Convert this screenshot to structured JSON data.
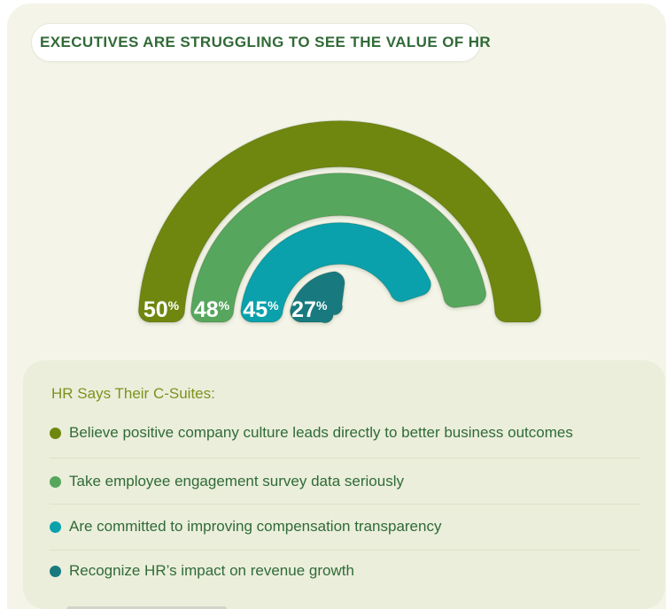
{
  "header": {
    "title": "EXECUTIVES ARE STRUGGLING TO SEE THE VALUE OF HR"
  },
  "chart_data": {
    "type": "bar",
    "subtype": "radial-gauge-semicircle",
    "note": "concentric half-circle arcs; each value is percent of a full circle, so 50% renders as a full semicircle",
    "unit": "%",
    "series": [
      {
        "name": "Believe positive company culture leads directly to better business outcomes",
        "value": 50,
        "color": "#6f870f"
      },
      {
        "name": "Take employee engagement survey data seriously",
        "value": 48,
        "color": "#57a65e"
      },
      {
        "name": "Are committed to improving compensation transparency",
        "value": 45,
        "color": "#0aa1ac"
      },
      {
        "name": "Recognize HR’s impact on revenue growth",
        "value": 27,
        "color": "#187a7f"
      }
    ],
    "value_labels": [
      "50%",
      "48%",
      "45%",
      "27%"
    ],
    "legend_position": "bottom"
  },
  "legend": {
    "title": "HR Says Their C-Suites:",
    "items": [
      {
        "label": "Believe positive company culture leads directly to better business outcomes",
        "color": "#6f870f"
      },
      {
        "label": "Take employee engagement survey data seriously",
        "color": "#57a65e"
      },
      {
        "label": "Are committed to improving compensation transparency",
        "color": "#0aa1ac"
      },
      {
        "label": "Recognize HR’s impact on revenue growth",
        "color": "#187a7f"
      }
    ]
  },
  "colors": {
    "page_bg": "#ffffff",
    "card_bg": "#f4f5e8",
    "panel_bg": "#ebeedb",
    "header_text": "#316a37",
    "legend_title_text": "#7c921c",
    "item_text": "#2f6b37",
    "divider": "#dde2c8",
    "value_label_text": "#ffffff"
  }
}
